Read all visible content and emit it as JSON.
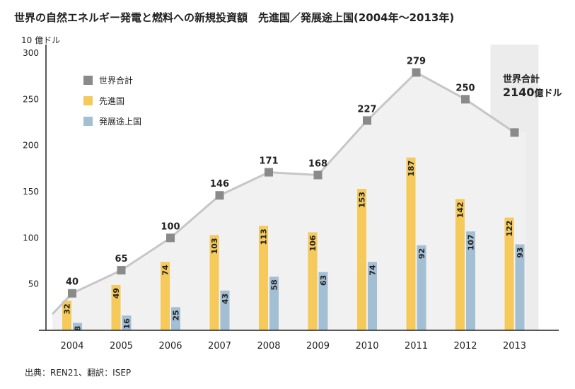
{
  "chart_data": {
    "type": "bar",
    "title": "世界の自然エネルギー発電と燃料への新規投資額　先進国／発展途上国(2004年〜2013年)",
    "ylabel": "10 億ドル",
    "ylim": [
      0,
      300
    ],
    "yticks": [
      50,
      100,
      150,
      200,
      250,
      300
    ],
    "categories": [
      "2004",
      "2005",
      "2006",
      "2007",
      "2008",
      "2009",
      "2010",
      "2011",
      "2012",
      "2013"
    ],
    "series": [
      {
        "name": "世界合計",
        "kind": "line",
        "color": "#8a8a8a",
        "line_color": "#c6c6c6",
        "values": [
          40,
          65,
          100,
          146,
          171,
          168,
          227,
          279,
          250,
          214
        ],
        "labels": [
          "40",
          "65",
          "100",
          "146",
          "171",
          "168",
          "227",
          "279",
          "250",
          ""
        ]
      },
      {
        "name": "先進国",
        "kind": "bar",
        "color": "#f5c95a",
        "values": [
          32,
          49,
          74,
          103,
          113,
          106,
          153,
          187,
          142,
          122
        ],
        "labels": [
          "32",
          "49",
          "74",
          "103",
          "113",
          "106",
          "153",
          "187",
          "142",
          "122"
        ]
      },
      {
        "name": "発展途上国",
        "kind": "bar",
        "color": "#a3bfd4",
        "values": [
          8,
          16,
          25,
          43,
          58,
          63,
          74,
          92,
          107,
          93
        ],
        "labels": [
          "8",
          "16",
          "25",
          "43",
          "58",
          "63",
          "74",
          "92",
          "107",
          "93"
        ]
      }
    ],
    "highlight_category": "2013",
    "annotation": {
      "line1": "世界合計",
      "value": "2140",
      "unit": "億ドル"
    },
    "legend_position": "top-left",
    "grid": false
  },
  "source": "出典：REN21、翻訳：ISEP"
}
